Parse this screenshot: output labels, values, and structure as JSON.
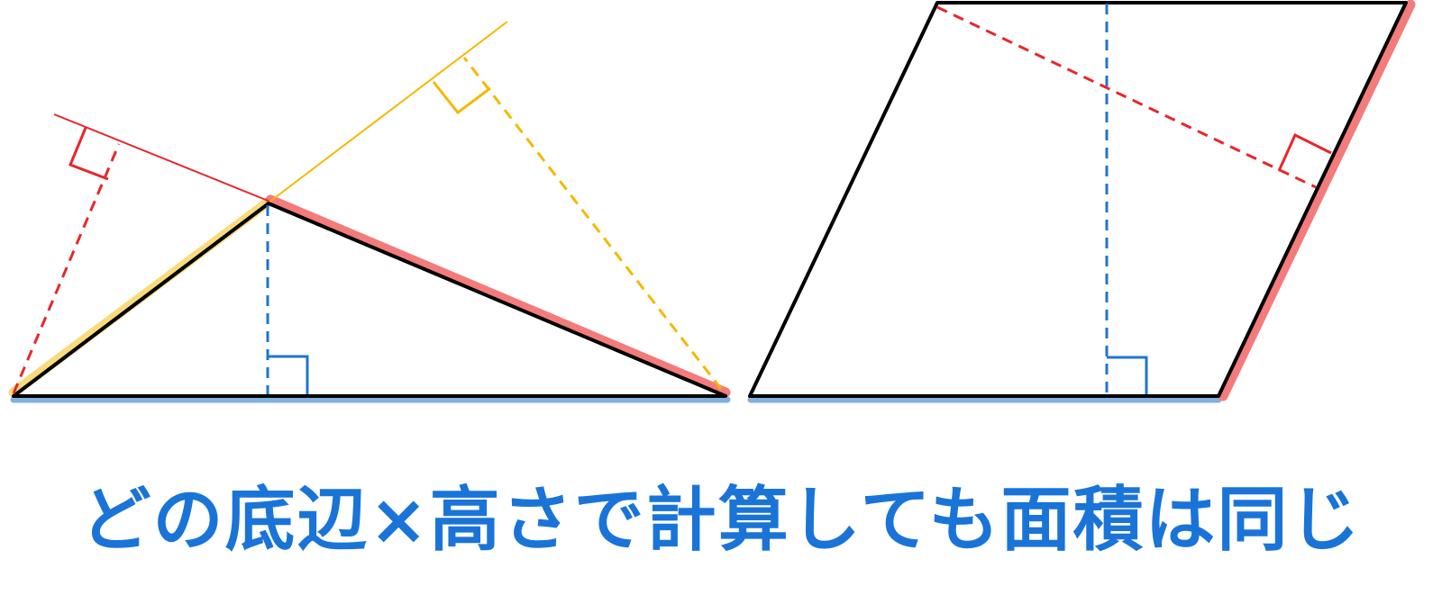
{
  "caption": "どの底辺×高さで計算しても面積は同じ",
  "colors": {
    "caption": "#1a74d8",
    "edge": "#000000",
    "base_highlight": "#7fb0e0",
    "red_highlight": "#f47b7b",
    "yellow_highlight": "#f9dc7a",
    "red": "#e8262b",
    "yellow": "#f5b800",
    "blue": "#1f74d4"
  },
  "figures": [
    "triangle",
    "parallelogram"
  ]
}
